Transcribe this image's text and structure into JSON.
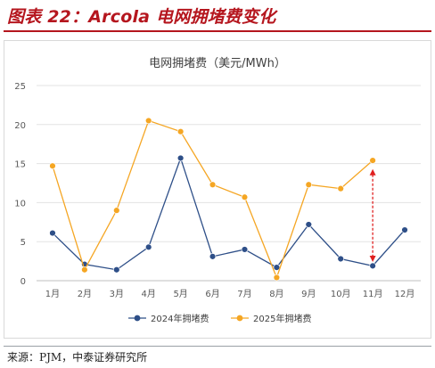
{
  "figure": {
    "title": "图表 22：Arcola 电网拥堵费变化",
    "source": "来源：PJM，中泰证券研究所"
  },
  "chart_data": {
    "type": "line",
    "title": "电网拥堵费（美元/MWh）",
    "categories": [
      "1月",
      "2月",
      "3月",
      "4月",
      "5月",
      "6月",
      "7月",
      "8月",
      "9月",
      "10月",
      "11月",
      "12月"
    ],
    "series": [
      {
        "name": "2024年拥堵费",
        "color": "#2e4f88",
        "values": [
          6.1,
          2.1,
          1.4,
          4.3,
          15.7,
          3.1,
          4.0,
          1.7,
          7.2,
          2.8,
          1.9,
          6.5
        ]
      },
      {
        "name": "2025年拥堵费",
        "color": "#f5a623",
        "values": [
          14.7,
          1.4,
          9.0,
          20.5,
          19.1,
          12.3,
          10.7,
          0.4,
          12.3,
          11.8,
          15.4,
          null
        ]
      }
    ],
    "yticks": [
      "0",
      "5",
      "10",
      "15",
      "20",
      "25"
    ],
    "ylim": [
      0,
      25
    ],
    "grid": true,
    "legend_position": "bottom",
    "annotation": {
      "type": "double-arrow",
      "color": "#e02020",
      "category": "11月",
      "from": 2.4,
      "to": 14.3
    }
  }
}
